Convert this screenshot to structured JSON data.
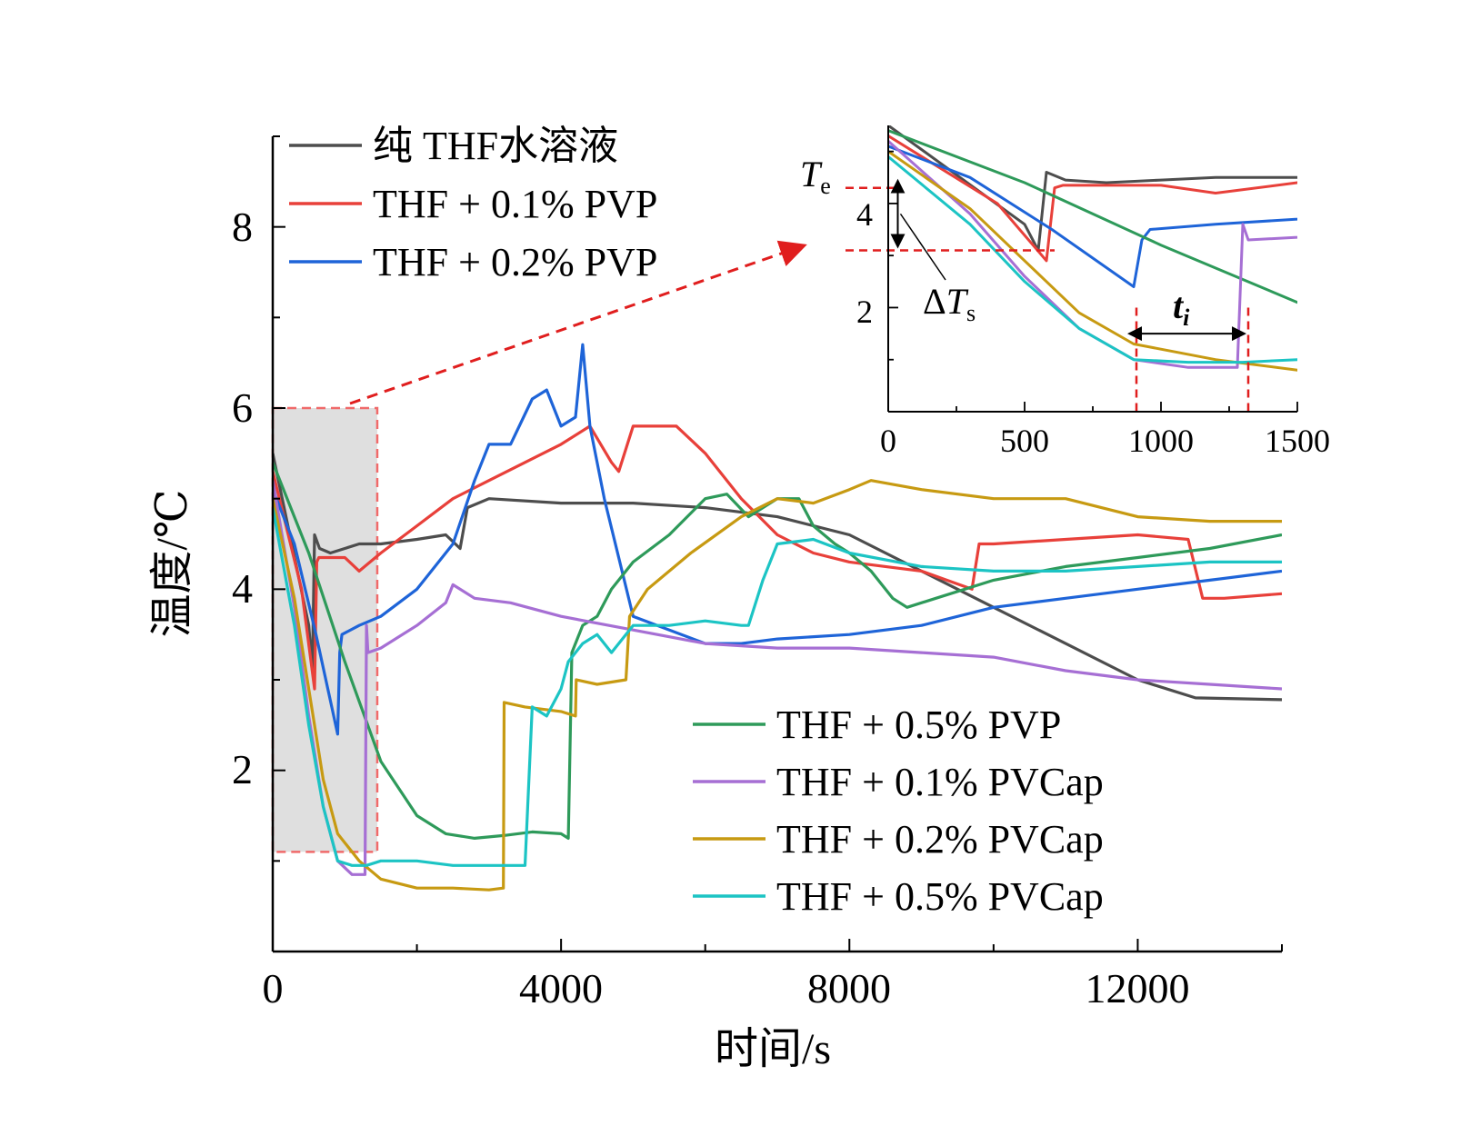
{
  "chart_data": {
    "type": "line",
    "xlabel": "时间/s",
    "ylabel": "温度/℃",
    "xlim": [
      0,
      14000
    ],
    "ylim": [
      0,
      9
    ],
    "x_ticks": [
      "0",
      "4000",
      "8000",
      "12000"
    ],
    "y_ticks": [
      "2",
      "4",
      "6",
      "8"
    ],
    "legend_top": [
      "纯 THF水溶液",
      "THF + 0.1% PVP",
      "THF + 0.2% PVP"
    ],
    "legend_bottom": [
      "THF + 0.5% PVP",
      "THF + 0.1% PVCap",
      "THF + 0.2% PVCap",
      "THF + 0.5% PVCap"
    ],
    "series": [
      {
        "name": "纯 THF水溶液",
        "color": "#4d4d4d",
        "x": [
          0,
          500,
          550,
          580,
          650,
          800,
          1000,
          1200,
          1500,
          2000,
          2400,
          2600,
          2700,
          3000,
          4000,
          5000,
          6000,
          7000,
          8000,
          9000,
          10000,
          11000,
          12000,
          12800,
          14000
        ],
        "y": [
          5.5,
          3.6,
          3.1,
          4.6,
          4.45,
          4.4,
          4.45,
          4.5,
          4.5,
          4.55,
          4.6,
          4.45,
          4.9,
          5.0,
          4.95,
          4.95,
          4.9,
          4.8,
          4.6,
          4.2,
          3.8,
          3.4,
          3.0,
          2.8,
          2.78
        ]
      },
      {
        "name": "THF + 0.1% PVP",
        "color": "#e8403a",
        "x": [
          0,
          400,
          580,
          610,
          640,
          1000,
          1200,
          1500,
          2000,
          2500,
          3000,
          3500,
          4000,
          4400,
          4700,
          4800,
          5000,
          5600,
          6000,
          6500,
          7000,
          7500,
          8000,
          9000,
          9700,
          9800,
          10000,
          11000,
          12000,
          12700,
          12900,
          13200,
          14000
        ],
        "y": [
          5.3,
          4.0,
          2.9,
          4.3,
          4.35,
          4.35,
          4.2,
          4.4,
          4.7,
          5.0,
          5.2,
          5.4,
          5.6,
          5.8,
          5.4,
          5.3,
          5.8,
          5.8,
          5.5,
          5.0,
          4.6,
          4.4,
          4.3,
          4.2,
          4.0,
          4.5,
          4.5,
          4.55,
          4.6,
          4.55,
          3.9,
          3.9,
          3.95
        ]
      },
      {
        "name": "THF + 0.2% PVP",
        "color": "#1e64d8",
        "x": [
          0,
          300,
          600,
          900,
          930,
          960,
          1200,
          1500,
          2000,
          2500,
          2800,
          3000,
          3300,
          3600,
          3800,
          4000,
          4200,
          4300,
          4400,
          4600,
          5000,
          6000,
          6500,
          7000,
          8000,
          9000,
          10000,
          11000,
          12000,
          13000,
          14000
        ],
        "y": [
          5.1,
          4.5,
          3.5,
          2.4,
          3.3,
          3.5,
          3.6,
          3.7,
          4.0,
          4.5,
          5.2,
          5.6,
          5.6,
          6.1,
          6.2,
          5.8,
          5.9,
          6.7,
          5.8,
          5.0,
          3.7,
          3.4,
          3.4,
          3.45,
          3.5,
          3.6,
          3.8,
          3.9,
          4.0,
          4.1,
          4.2
        ]
      },
      {
        "name": "THF + 0.5% PVP",
        "color": "#2e9a5a",
        "x": [
          0,
          500,
          1000,
          1500,
          2000,
          2400,
          2800,
          3200,
          3600,
          4000,
          4100,
          4150,
          4300,
          4500,
          4700,
          5000,
          5500,
          6000,
          6300,
          6600,
          7000,
          7300,
          7500,
          7800,
          8000,
          8300,
          8600,
          8800,
          9200,
          10000,
          11000,
          12000,
          13000,
          14000
        ],
        "y": [
          5.4,
          4.4,
          3.2,
          2.1,
          1.5,
          1.3,
          1.25,
          1.28,
          1.32,
          1.3,
          1.25,
          3.3,
          3.6,
          3.7,
          4.0,
          4.3,
          4.6,
          5.0,
          5.05,
          4.8,
          5.0,
          5.0,
          4.7,
          4.5,
          4.4,
          4.2,
          3.9,
          3.8,
          3.9,
          4.1,
          4.25,
          4.35,
          4.45,
          4.6
        ]
      },
      {
        "name": "THF + 0.1% PVCap",
        "color": "#a66fd4",
        "x": [
          0,
          300,
          500,
          700,
          900,
          1100,
          1280,
          1300,
          1320,
          1500,
          2000,
          2400,
          2500,
          2800,
          3300,
          4000,
          5000,
          6000,
          7000,
          8000,
          9000,
          10000,
          11000,
          12000,
          13000,
          14000
        ],
        "y": [
          5.2,
          3.8,
          2.6,
          1.6,
          1.0,
          0.85,
          0.85,
          3.6,
          3.3,
          3.35,
          3.6,
          3.85,
          4.05,
          3.9,
          3.85,
          3.7,
          3.55,
          3.4,
          3.35,
          3.35,
          3.3,
          3.25,
          3.1,
          3.0,
          2.95,
          2.9
        ]
      },
      {
        "name": "THF + 0.2% PVCap",
        "color": "#c79a12",
        "x": [
          0,
          300,
          500,
          700,
          900,
          1200,
          1500,
          2000,
          2500,
          3000,
          3200,
          3210,
          3500,
          4000,
          4200,
          4210,
          4500,
          4900,
          4950,
          5200,
          5800,
          6500,
          7000,
          7500,
          8000,
          8300,
          9000,
          10000,
          11000,
          12000,
          13000,
          14000
        ],
        "y": [
          5.0,
          3.9,
          2.9,
          1.9,
          1.3,
          1.0,
          0.8,
          0.7,
          0.7,
          0.68,
          0.7,
          2.75,
          2.7,
          2.65,
          2.6,
          3.0,
          2.95,
          3.0,
          3.7,
          4.0,
          4.4,
          4.8,
          5.0,
          4.95,
          5.1,
          5.2,
          5.1,
          5.0,
          5.0,
          4.8,
          4.75,
          4.75
        ]
      },
      {
        "name": "THF + 0.5% PVCap",
        "color": "#1cc4c4",
        "x": [
          0,
          300,
          500,
          700,
          900,
          1100,
          1300,
          1500,
          2000,
          2500,
          3000,
          3300,
          3500,
          3600,
          3800,
          4000,
          4100,
          4300,
          4500,
          4700,
          5000,
          5500,
          6000,
          6500,
          6600,
          6800,
          7000,
          7500,
          8000,
          9000,
          10000,
          11000,
          12000,
          13000,
          14000
        ],
        "y": [
          4.9,
          3.6,
          2.5,
          1.6,
          1.0,
          0.95,
          0.95,
          1.0,
          1.0,
          0.95,
          0.95,
          0.95,
          0.95,
          2.7,
          2.6,
          2.9,
          3.2,
          3.4,
          3.5,
          3.3,
          3.6,
          3.6,
          3.65,
          3.6,
          3.6,
          4.1,
          4.5,
          4.55,
          4.4,
          4.25,
          4.2,
          4.2,
          4.25,
          4.3,
          4.3
        ]
      }
    ],
    "inset": {
      "xlim": [
        0,
        1500
      ],
      "ylim": [
        0,
        5.5
      ],
      "x_ticks": [
        "0",
        "500",
        "1000",
        "1500"
      ],
      "y_ticks": [
        "2",
        "4"
      ],
      "labels": {
        "te_main": "T",
        "te_sub": "e",
        "dts_delta": "Δ",
        "dts_main": "T",
        "dts_sub": "s",
        "ti_main": "t",
        "ti_sub": "i"
      },
      "ref_lines": {
        "te": 4.3,
        "ts": 3.1,
        "t_start": 910,
        "t_end": 1320
      }
    },
    "highlight_region": {
      "x": [
        0,
        1450
      ],
      "y": [
        1.1,
        6.0
      ]
    }
  }
}
